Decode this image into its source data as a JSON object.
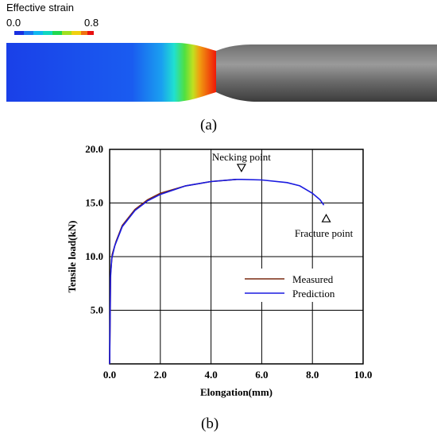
{
  "panel_a": {
    "legend_title": "Effective strain",
    "legend_min": "0.0",
    "legend_max": "0.8",
    "panel_label": "(a)",
    "colors": {
      "low": "#1040e8",
      "mid": "#18c8f0",
      "high": "#ee1a10",
      "specimen_dark": "#4a4a4a",
      "specimen_light": "#9a9a9a"
    }
  },
  "panel_b": {
    "panel_label": "(b)",
    "annotations": {
      "necking": "Necking point",
      "fracture": "Fracture point"
    }
  },
  "chart_data": {
    "type": "line",
    "xlabel": "Elongation(mm)",
    "ylabel": "Tensile load(kN)",
    "xlim": [
      0,
      10
    ],
    "ylim": [
      0,
      20
    ],
    "x_ticks": [
      "0.0",
      "2.0",
      "4.0",
      "6.0",
      "8.0",
      "10.0"
    ],
    "y_ticks": [
      "5.0",
      "10.0",
      "15.0",
      "20.0"
    ],
    "grid": true,
    "legend_position": "center-right",
    "series": [
      {
        "name": "Measured",
        "color": "#7a2a10",
        "x": [
          0,
          0.04,
          0.1,
          0.25,
          0.5,
          1.0,
          1.5,
          2.0,
          3.0,
          4.0,
          5.0
        ],
        "y": [
          0,
          8.5,
          10.2,
          11.4,
          12.9,
          14.4,
          15.3,
          15.9,
          16.6,
          17.0,
          17.2
        ]
      },
      {
        "name": "Prediction",
        "color": "#1a1ae0",
        "x": [
          0,
          0.03,
          0.08,
          0.2,
          0.5,
          1.0,
          1.5,
          2.0,
          3.0,
          4.0,
          5.0,
          5.2,
          6.0,
          7.0,
          7.5,
          8.0,
          8.3,
          8.45
        ],
        "y": [
          0,
          8.0,
          9.8,
          11.0,
          12.8,
          14.3,
          15.2,
          15.8,
          16.6,
          17.0,
          17.2,
          17.2,
          17.15,
          16.9,
          16.6,
          15.9,
          15.3,
          14.8
        ]
      }
    ],
    "annotation_points": [
      {
        "label": "Necking point",
        "x": 5.2,
        "y": 17.2,
        "marker": "down-triangle"
      },
      {
        "label": "Fracture point",
        "x": 8.45,
        "y": 14.8,
        "marker": "up-triangle"
      }
    ]
  }
}
